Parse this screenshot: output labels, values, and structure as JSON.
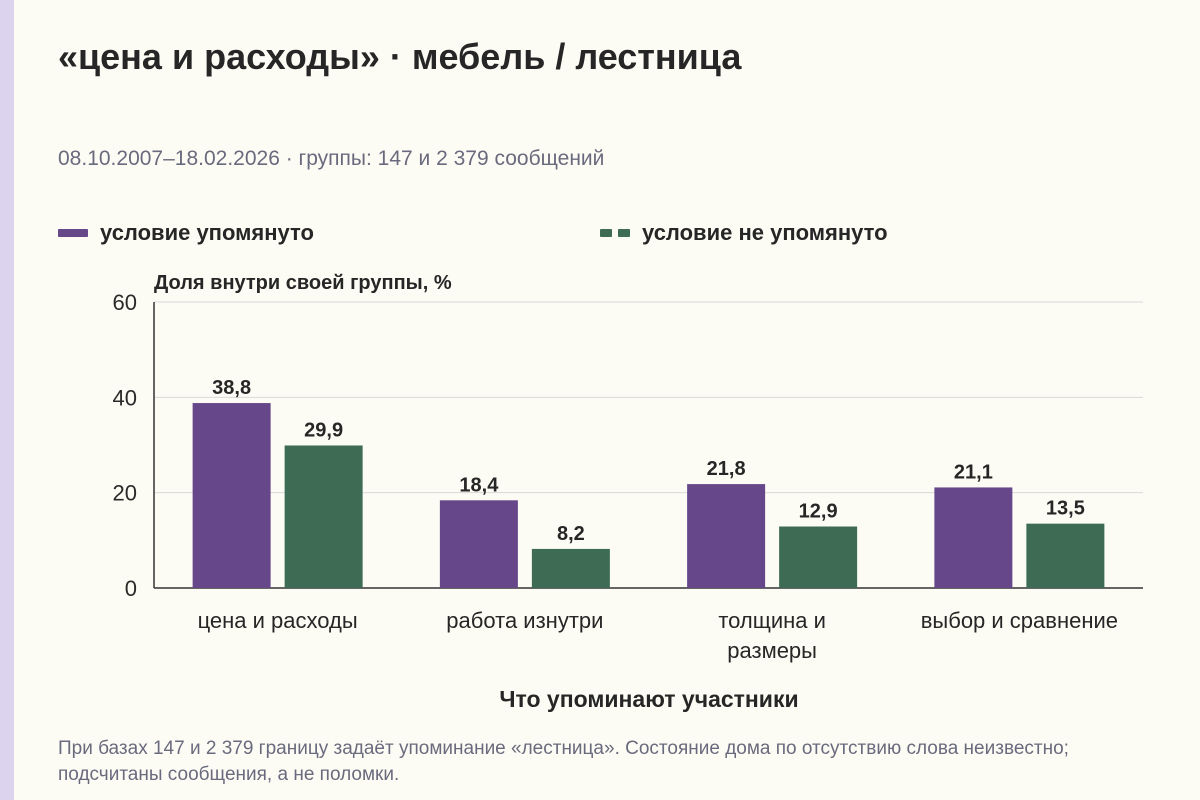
{
  "header": {
    "title": "«цена и расходы» · мебель / лестница",
    "subtitle": "08.10.2007–18.02.2026 · группы: 147 и 2 379 сообщений"
  },
  "legend": {
    "mentioned": "условие упомянуто",
    "not_mentioned": "условие не упомянуто"
  },
  "colors": {
    "mentioned": "#66478a",
    "not_mentioned": "#3d6b54",
    "grid": "#d9d9d9",
    "axis": "#333333"
  },
  "chart_data": {
    "type": "bar",
    "ylabel": "Доля внутри своей группы, %",
    "xlabel": "Что упоминают участники",
    "ylim": [
      0,
      60
    ],
    "yticks": [
      0,
      20,
      40,
      60
    ],
    "grid": true,
    "legend_position": "top-left",
    "categories": [
      [
        "цена и расходы"
      ],
      [
        "работа изнутри"
      ],
      [
        "толщина и",
        "размеры"
      ],
      [
        "выбор и сравнение"
      ]
    ],
    "series": [
      {
        "name": "условие упомянуто",
        "values": [
          38.8,
          18.4,
          21.8,
          21.1
        ],
        "labels": [
          "38,8",
          "18,4",
          "21,8",
          "21,1"
        ]
      },
      {
        "name": "условие не упомянуто",
        "values": [
          29.9,
          8.2,
          12.9,
          13.5
        ],
        "labels": [
          "29,9",
          "8,2",
          "12,9",
          "13,5"
        ]
      }
    ]
  },
  "footnote": "При базах 147 и 2 379 границу задаёт упоминание «лестница». Состояние дома по отсутствию слова неизвестно; подсчитаны сообщения, а не поломки."
}
